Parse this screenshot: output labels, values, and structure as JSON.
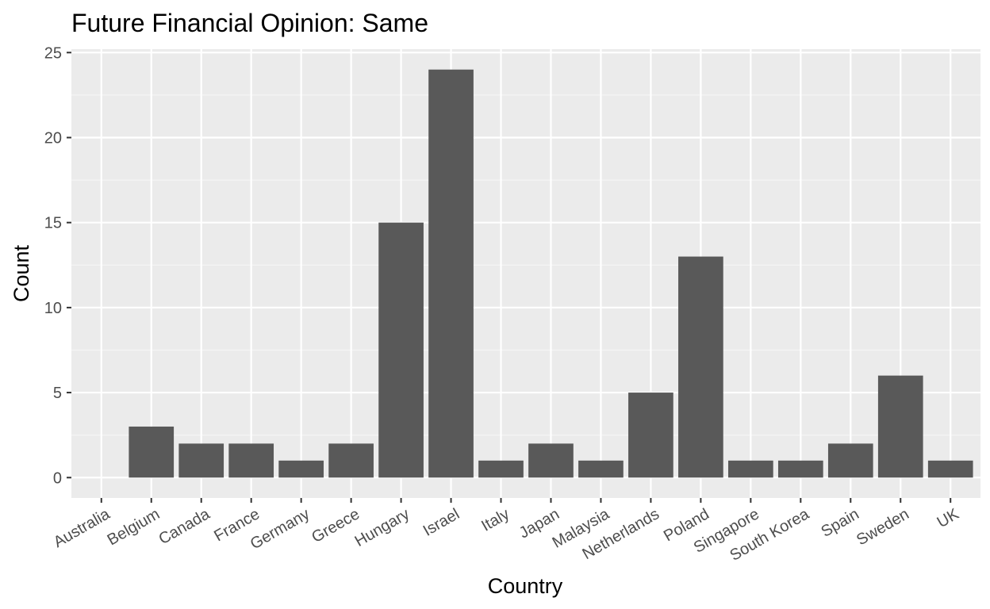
{
  "chart_data": {
    "type": "bar",
    "title": "Future Financial Opinion: Same",
    "xlabel": "Country",
    "ylabel": "Count",
    "categories": [
      "Australia",
      "Belgium",
      "Canada",
      "France",
      "Germany",
      "Greece",
      "Hungary",
      "Israel",
      "Italy",
      "Japan",
      "Malaysia",
      "Netherlands",
      "Poland",
      "Singapore",
      "South Korea",
      "Spain",
      "Sweden",
      "UK"
    ],
    "values": [
      0,
      3,
      2,
      2,
      1,
      2,
      15,
      24,
      1,
      2,
      1,
      5,
      13,
      1,
      1,
      2,
      6,
      1
    ],
    "yticks": [
      "0",
      "5",
      "10",
      "15",
      "20",
      "25"
    ],
    "ylim": [
      -1.2,
      25.2
    ],
    "grid": true,
    "legend": "none",
    "colors": {
      "bar": "#595959",
      "panel": "#ebebeb",
      "grid_major": "#ffffff",
      "grid_minor": "#f5f5f5",
      "tick": "#333333"
    }
  }
}
